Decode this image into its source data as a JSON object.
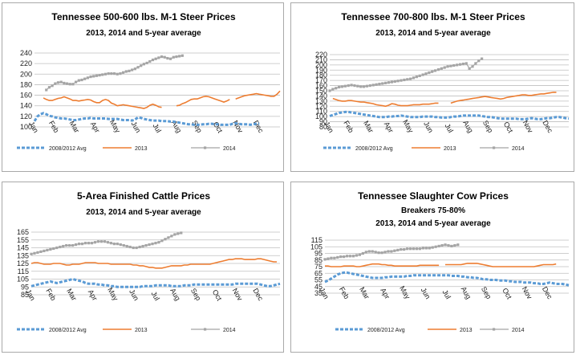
{
  "colors": {
    "avg": "#5B9BD5",
    "y2013": "#ED7D31",
    "y2014": "#A5A5A5",
    "grid": "#BFBFBF",
    "border": "#A9A9A9"
  },
  "chart_data": [
    {
      "type": "line",
      "title": "Tennessee 500-600 lbs. M-1 Steer Prices",
      "subtitle": "2013, 2014 and 5-year average",
      "subtitle2": "",
      "ylim": [
        100,
        240
      ],
      "yticks": [
        100,
        120,
        140,
        160,
        180,
        200,
        220,
        240
      ],
      "months": [
        "Jan",
        "Feb",
        "Mar",
        "Apr",
        "May",
        "Jun",
        "Jul",
        "Aug",
        "Sep",
        "Oct",
        "Nov",
        "Dec"
      ],
      "legend": [
        "2008/2012 Avg",
        "2013",
        "2014"
      ],
      "series": [
        {
          "name": "2008/2012 Avg",
          "style": "dash",
          "values": [
            111,
            120,
            124,
            126,
            124,
            121,
            120,
            118,
            117,
            116,
            116,
            115,
            114,
            113,
            113,
            114,
            115,
            116,
            116,
            117,
            116,
            116,
            116,
            116,
            116,
            115,
            115,
            115,
            115,
            114,
            113,
            113,
            113,
            112,
            114,
            118,
            117,
            115,
            114,
            113,
            112,
            112,
            112,
            111,
            111,
            111,
            110,
            110,
            109,
            108,
            107,
            106,
            105,
            105,
            104,
            104,
            104,
            105,
            105,
            106,
            106,
            105,
            105,
            104,
            104,
            104,
            104,
            106,
            107,
            106,
            105,
            105,
            105,
            104,
            105,
            106,
            106
          ]
        },
        {
          "name": "2013",
          "style": "solid",
          "values": [
            null,
            null,
            null,
            155,
            152,
            150,
            150,
            152,
            154,
            155,
            157,
            155,
            153,
            150,
            150,
            149,
            150,
            151,
            152,
            151,
            148,
            146,
            146,
            150,
            152,
            150,
            145,
            143,
            140,
            141,
            142,
            141,
            140,
            139,
            138,
            137,
            136,
            135,
            137,
            141,
            143,
            141,
            138,
            137,
            null,
            null,
            null,
            null,
            140,
            141,
            144,
            146,
            149,
            152,
            153,
            153,
            155,
            157,
            158,
            157,
            155,
            153,
            151,
            149,
            147,
            149,
            152,
            null,
            153,
            155,
            157,
            159,
            160,
            161,
            162,
            163,
            162,
            161,
            160,
            159,
            158,
            158,
            162,
            168
          ]
        },
        {
          "name": "2014",
          "style": "dots",
          "values": [
            null,
            null,
            null,
            null,
            170,
            175,
            178,
            182,
            184,
            185,
            183,
            182,
            181,
            181,
            185,
            188,
            189,
            191,
            193,
            195,
            196,
            197,
            198,
            199,
            200,
            201,
            201,
            201,
            200,
            201,
            203,
            205,
            206,
            208,
            210,
            213,
            216,
            219,
            221,
            224,
            227,
            229,
            231,
            233,
            232,
            230,
            229,
            232,
            233,
            234,
            235
          ]
        }
      ]
    },
    {
      "type": "line",
      "title": "Tennessee 700-800 lbs. M-1 Steer Prices",
      "subtitle": "2013, 2014 and 5-year average",
      "subtitle2": "",
      "ylim": [
        80,
        220
      ],
      "yticks": [
        80,
        90,
        100,
        110,
        120,
        130,
        140,
        150,
        160,
        170,
        180,
        190,
        200,
        210,
        220
      ],
      "months": [
        "Jan",
        "Feb",
        "Mar",
        "Apr",
        "May",
        "Jun",
        "Jul",
        "Aug",
        "Sep",
        "Oct",
        "Nov",
        "Dec"
      ],
      "legend": [
        "2008/2012 Avg",
        "2013",
        "2014"
      ],
      "series": [
        {
          "name": "2008/2012 Avg",
          "style": "dash",
          "values": [
            101,
            103,
            105,
            107,
            108,
            109,
            109,
            108,
            107,
            106,
            105,
            104,
            103,
            102,
            101,
            100,
            99,
            99,
            99,
            100,
            100,
            101,
            101,
            102,
            101,
            100,
            99,
            99,
            99,
            99,
            100,
            100,
            100,
            100,
            99,
            99,
            98,
            98,
            98,
            99,
            100,
            100,
            101,
            102,
            102,
            102,
            102,
            102,
            102,
            101,
            100,
            99,
            99,
            98,
            97,
            96,
            96,
            96,
            96,
            96,
            96,
            95,
            95,
            95,
            96,
            97,
            96,
            95,
            95,
            96,
            97,
            97,
            98,
            99,
            99,
            98,
            97,
            96
          ]
        },
        {
          "name": "2013",
          "style": "solid",
          "values": [
            null,
            135,
            133,
            131,
            130,
            130,
            131,
            131,
            130,
            129,
            128,
            128,
            127,
            126,
            125,
            123,
            122,
            121,
            120,
            122,
            125,
            124,
            122,
            121,
            121,
            121,
            122,
            123,
            123,
            123,
            124,
            124,
            124,
            125,
            126,
            126,
            null,
            null,
            null,
            126,
            128,
            130,
            131,
            132,
            133,
            134,
            135,
            136,
            137,
            138,
            139,
            138,
            137,
            136,
            135,
            134,
            135,
            137,
            138,
            139,
            140,
            141,
            142,
            142,
            141,
            141,
            142,
            143,
            144,
            144,
            145,
            146,
            147,
            147
          ]
        },
        {
          "name": "2014",
          "style": "dots",
          "values": [
            150,
            153,
            155,
            157,
            158,
            159,
            160,
            161,
            160,
            159,
            158,
            158,
            159,
            160,
            161,
            162,
            163,
            164,
            165,
            166,
            167,
            168,
            169,
            170,
            171,
            172,
            173,
            175,
            177,
            179,
            181,
            183,
            185,
            187,
            189,
            191,
            193,
            195,
            197,
            198,
            199,
            200,
            201,
            202,
            203,
            193,
            197,
            203,
            208,
            212
          ]
        }
      ]
    },
    {
      "type": "line",
      "title": "5-Area Finished Cattle Prices",
      "subtitle": "2013, 2014 and 5-year average",
      "subtitle2": "",
      "ylim": [
        85,
        165
      ],
      "yticks": [
        85,
        95,
        105,
        115,
        125,
        135,
        145,
        155,
        165
      ],
      "months": [
        "Jan",
        "Feb",
        "Mar",
        "Apr",
        "May",
        "Jun",
        "Jul",
        "Aug",
        "Sep",
        "Oct",
        "Nov",
        "Dec"
      ],
      "legend": [
        "2008/2012 Avg",
        "2013",
        "2014"
      ],
      "series": [
        {
          "name": "2008/2012 Avg",
          "style": "dash",
          "values": [
            96,
            97,
            98,
            99,
            100,
            101,
            102,
            101,
            100,
            101,
            102,
            103,
            104,
            105,
            104,
            103,
            102,
            100,
            99,
            99,
            99,
            98,
            98,
            97,
            97,
            96,
            96,
            95,
            95,
            95,
            95,
            95,
            95,
            95,
            95,
            96,
            96,
            96,
            96,
            97,
            97,
            97,
            97,
            97,
            96,
            96,
            96,
            96,
            97,
            97,
            97,
            98,
            98,
            98,
            98,
            98,
            98,
            98,
            98,
            98,
            98,
            98,
            98,
            98,
            99,
            99,
            99,
            99,
            99,
            99,
            99,
            99,
            98,
            97,
            96,
            96,
            97,
            98,
            99
          ]
        },
        {
          "name": "2013",
          "style": "solid",
          "values": [
            125,
            126,
            126,
            125,
            124,
            124,
            124,
            125,
            125,
            125,
            124,
            123,
            123,
            124,
            124,
            124,
            125,
            126,
            126,
            126,
            126,
            125,
            125,
            125,
            125,
            124,
            124,
            124,
            124,
            124,
            124,
            124,
            123,
            123,
            122,
            122,
            121,
            120,
            120,
            119,
            119,
            119,
            120,
            121,
            122,
            122,
            122,
            122,
            123,
            123,
            124,
            124,
            124,
            124,
            124,
            124,
            124,
            125,
            126,
            127,
            128,
            129,
            130,
            130,
            131,
            131,
            131,
            130,
            130,
            130,
            130,
            131,
            131,
            130,
            129,
            128,
            127,
            127
          ]
        },
        {
          "name": "2014",
          "style": "dots",
          "values": [
            137,
            138,
            139,
            140,
            141,
            142,
            143,
            144,
            145,
            146,
            147,
            148,
            148,
            148,
            149,
            150,
            150,
            151,
            151,
            151,
            152,
            153,
            153,
            153,
            152,
            151,
            150,
            150,
            149,
            148,
            147,
            146,
            145,
            145,
            146,
            147,
            148,
            149,
            150,
            151,
            152,
            154,
            156,
            158,
            160,
            162,
            163,
            164
          ]
        }
      ]
    },
    {
      "type": "line",
      "title": "Tennessee Slaughter Cow Prices",
      "subtitle": "Breakers 75-80%",
      "subtitle2": "2013, 2014 and 5-year average",
      "ylim": [
        35,
        115
      ],
      "yticks": [
        35,
        45,
        55,
        65,
        75,
        85,
        95,
        105,
        115
      ],
      "months": [
        "Jan",
        "Feb",
        "Mar",
        "Apr",
        "May",
        "Jun",
        "Jul",
        "Aug",
        "Sep",
        "Oct",
        "Nov",
        "Dec"
      ],
      "legend": [
        "2008/2012 Avg",
        "2013",
        "2014"
      ],
      "series": [
        {
          "name": "2008/2012 Avg",
          "style": "dash",
          "values": [
            52,
            54,
            57,
            60,
            63,
            65,
            66,
            66,
            65,
            64,
            63,
            62,
            61,
            60,
            59,
            58,
            58,
            58,
            58,
            59,
            59,
            60,
            60,
            60,
            60,
            60,
            61,
            61,
            62,
            62,
            62,
            62,
            62,
            62,
            62,
            62,
            62,
            62,
            62,
            62,
            61,
            61,
            61,
            60,
            60,
            59,
            59,
            58,
            58,
            57,
            56,
            56,
            55,
            55,
            55,
            54,
            54,
            54,
            53,
            53,
            52,
            52,
            52,
            51,
            51,
            51,
            50,
            50,
            49,
            49,
            50,
            51,
            50,
            49,
            49,
            49,
            48,
            47
          ]
        },
        {
          "name": "2013",
          "style": "solid",
          "values": [
            76,
            76,
            75,
            75,
            75,
            75,
            76,
            76,
            76,
            76,
            75,
            75,
            76,
            77,
            78,
            79,
            79,
            79,
            78,
            78,
            77,
            77,
            76,
            76,
            76,
            76,
            76,
            76,
            76,
            76,
            77,
            77,
            77,
            77,
            77,
            77,
            77,
            null,
            78,
            78,
            78,
            78,
            78,
            78,
            79,
            80,
            80,
            80,
            80,
            79,
            78,
            77,
            76,
            75,
            75,
            75,
            75,
            75,
            75,
            75,
            75,
            75,
            75,
            75,
            75,
            75,
            75,
            76,
            77,
            78,
            78,
            78,
            78,
            79
          ]
        },
        {
          "name": "2014",
          "style": "dots",
          "values": [
            86,
            87,
            88,
            88,
            89,
            90,
            90,
            91,
            91,
            91,
            92,
            93,
            95,
            97,
            98,
            98,
            97,
            96,
            96,
            97,
            98,
            98,
            99,
            100,
            101,
            101,
            102,
            102,
            102,
            102,
            102,
            103,
            103,
            103,
            104,
            105,
            106,
            107,
            108,
            107,
            106,
            107,
            108
          ]
        }
      ]
    }
  ]
}
